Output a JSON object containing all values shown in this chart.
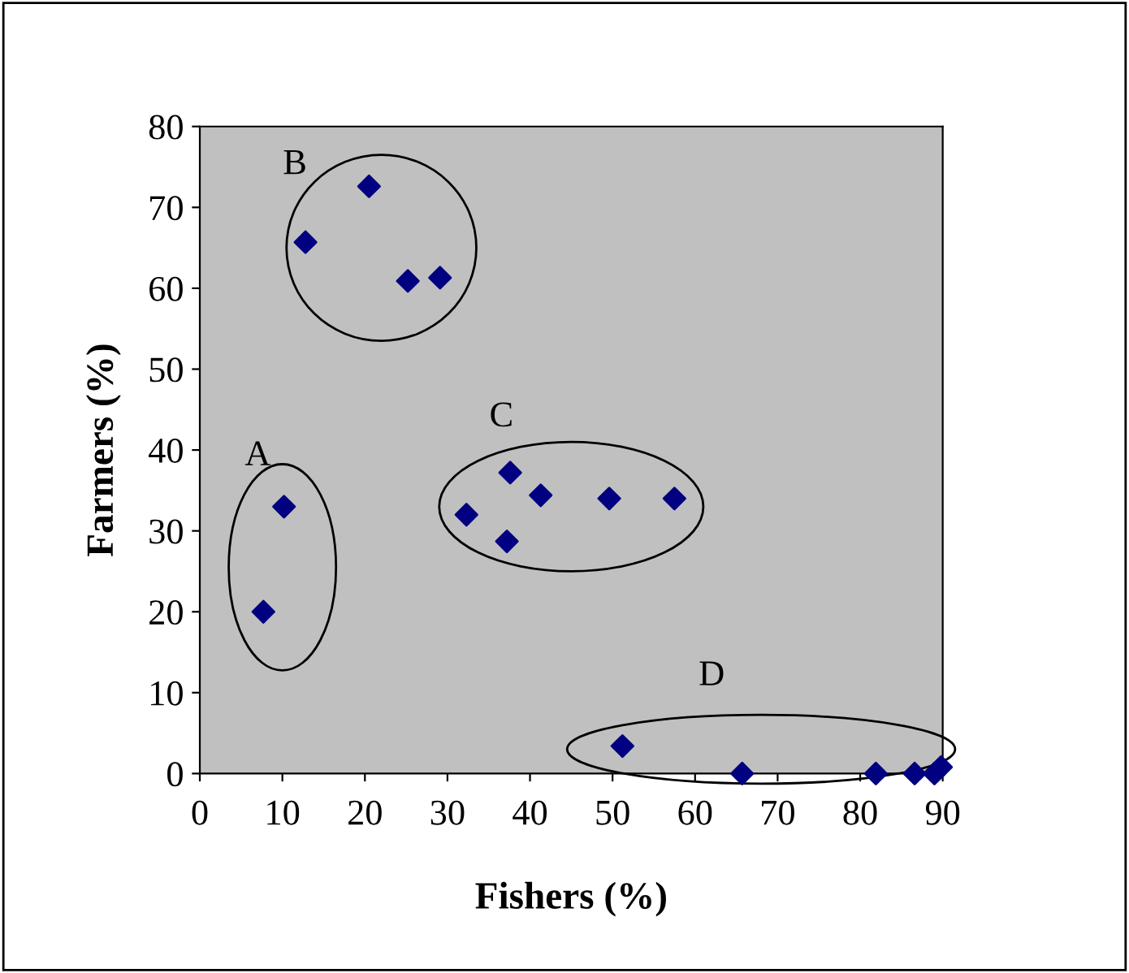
{
  "chart_data": {
    "type": "scatter",
    "xlabel": "Fishers (%)",
    "ylabel": "Farmers (%)",
    "x": [
      7.7,
      10.2,
      12.8,
      20.5,
      25.2,
      29.1,
      32.3,
      37.6,
      37.2,
      41.3,
      49.6,
      57.5,
      51.2,
      65.7,
      81.9,
      86.6,
      89.0,
      89.8
    ],
    "series": [
      {
        "color": "#000080",
        "values": [
          20,
          33,
          65.7,
          72.6,
          60.9,
          61.3,
          32,
          37.2,
          28.7,
          34.4,
          34,
          34,
          3.4,
          0,
          0,
          0,
          0,
          0.8
        ]
      }
    ],
    "marker": "diamond",
    "grid": false,
    "legend": false,
    "xlim": [
      0,
      90
    ],
    "xticks": [
      0,
      10,
      20,
      30,
      40,
      50,
      60,
      70,
      80,
      90
    ],
    "ylim": [
      0,
      80
    ],
    "yticks": [
      0,
      10,
      20,
      30,
      40,
      50,
      60,
      70,
      80
    ],
    "annotations": [
      "A",
      "B",
      "C",
      "D"
    ]
  }
}
